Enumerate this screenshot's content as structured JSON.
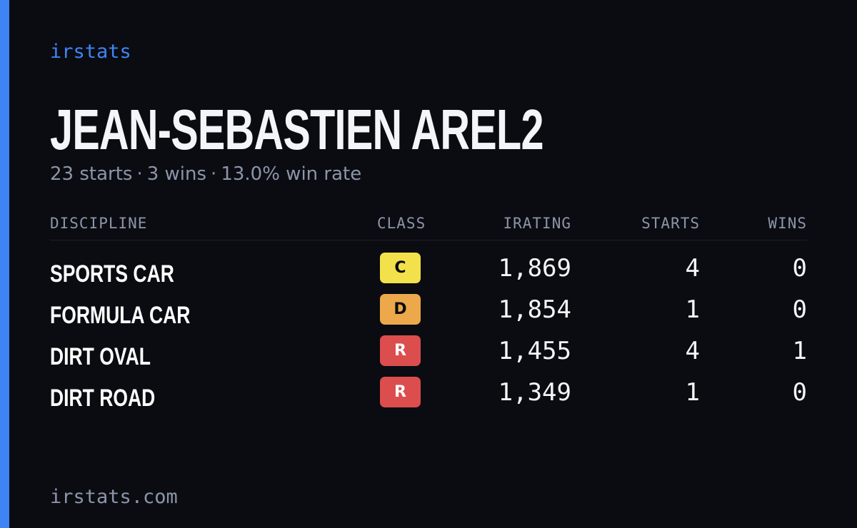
{
  "brand": "irstats",
  "driver": {
    "name": "JEAN-SEBASTIEN AREL2",
    "summary": {
      "starts": "23 starts",
      "wins": "3 wins",
      "win_rate": "13.0% win rate",
      "separator": "·"
    }
  },
  "table": {
    "headers": {
      "discipline": "DISCIPLINE",
      "class": "CLASS",
      "irating": "IRATING",
      "starts": "STARTS",
      "wins": "WINS"
    },
    "rows": [
      {
        "discipline": "SPORTS CAR",
        "class": "C",
        "class_color": "#f2e14a",
        "irating": "1,869",
        "starts": "4",
        "wins": "0"
      },
      {
        "discipline": "FORMULA CAR",
        "class": "D",
        "class_color": "#eca84a",
        "irating": "1,854",
        "starts": "1",
        "wins": "0"
      },
      {
        "discipline": "DIRT OVAL",
        "class": "R",
        "class_color": "#dc4d4d",
        "irating": "1,455",
        "starts": "4",
        "wins": "1"
      },
      {
        "discipline": "DIRT ROAD",
        "class": "R",
        "class_color": "#dc4d4d",
        "irating": "1,349",
        "starts": "1",
        "wins": "0"
      }
    ]
  },
  "footer": {
    "url": "irstats.com"
  },
  "colors": {
    "accent": "#3f84f5",
    "background": "#0a0c12",
    "muted_text": "#8c95a8"
  }
}
